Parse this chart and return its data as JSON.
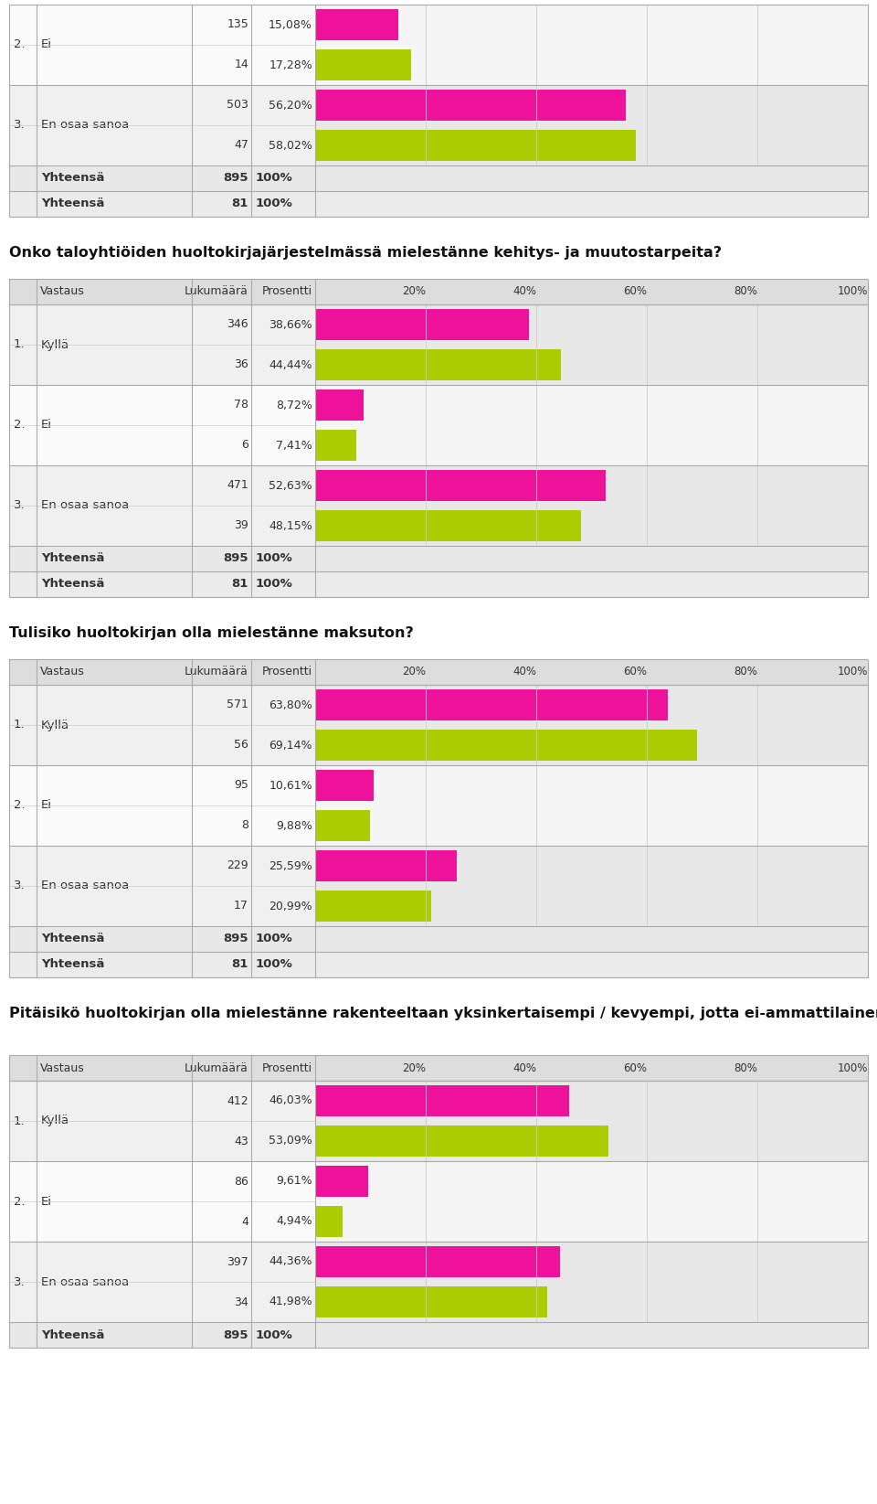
{
  "sections": [
    {
      "title": "Onko taloyhtiöiden huoltokirjajärjestelmässä mielestänne kehitys- ja muutostarpeita?",
      "title_lines": 1,
      "rows": [
        {
          "num": "1.",
          "label": "Kyllä",
          "val1": 346,
          "pct1": "38,66%",
          "pct1f": 38.66,
          "val2": 36,
          "pct2": "44,44%",
          "pct2f": 44.44
        },
        {
          "num": "2.",
          "label": "Ei",
          "val1": 78,
          "pct1": "8,72%",
          "pct1f": 8.72,
          "val2": 6,
          "pct2": "7,41%",
          "pct2f": 7.41
        },
        {
          "num": "3.",
          "label": "En osaa sanoa",
          "val1": 471,
          "pct1": "52,63%",
          "pct1f": 52.63,
          "val2": 39,
          "pct2": "48,15%",
          "pct2f": 48.15
        }
      ],
      "yhteensa": [
        {
          "n": "895",
          "pct": "100%"
        },
        {
          "n": "81",
          "pct": "100%"
        }
      ]
    },
    {
      "title": "Tulisiko huoltokirjan olla mielestänne maksuton?",
      "title_lines": 1,
      "rows": [
        {
          "num": "1.",
          "label": "Kyllä",
          "val1": 571,
          "pct1": "63,80%",
          "pct1f": 63.8,
          "val2": 56,
          "pct2": "69,14%",
          "pct2f": 69.14
        },
        {
          "num": "2.",
          "label": "Ei",
          "val1": 95,
          "pct1": "10,61%",
          "pct1f": 10.61,
          "val2": 8,
          "pct2": "9,88%",
          "pct2f": 9.88
        },
        {
          "num": "3.",
          "label": "En osaa sanoa",
          "val1": 229,
          "pct1": "25,59%",
          "pct1f": 25.59,
          "val2": 17,
          "pct2": "20,99%",
          "pct2f": 20.99
        }
      ],
      "yhteensa": [
        {
          "n": "895",
          "pct": "100%"
        },
        {
          "n": "81",
          "pct": "100%"
        }
      ]
    },
    {
      "title": "Pitäisikö huoltokirjan olla mielestänne rakenteeltaan yksinkertaisempi / kevyempi, jotta ei-ammattilainenkin pystyisi hyödyntämään sitä?",
      "title_lines": 2,
      "rows": [
        {
          "num": "1.",
          "label": "Kyllä",
          "val1": 412,
          "pct1": "46,03%",
          "pct1f": 46.03,
          "val2": 43,
          "pct2": "53,09%",
          "pct2f": 53.09
        },
        {
          "num": "2.",
          "label": "Ei",
          "val1": 86,
          "pct1": "9,61%",
          "pct1f": 9.61,
          "val2": 4,
          "pct2": "4,94%",
          "pct2f": 4.94
        },
        {
          "num": "3.",
          "label": "En osaa sanoa",
          "val1": 397,
          "pct1": "44,36%",
          "pct1f": 44.36,
          "val2": 34,
          "pct2": "41,98%",
          "pct2f": 41.98
        }
      ],
      "yhteensa": [
        {
          "n": "895",
          "pct": "100%"
        }
      ]
    }
  ],
  "top_rows": [
    {
      "num": "2.",
      "label": "Ei",
      "val1": 135,
      "pct1": "15,08%",
      "pct1f": 15.08,
      "val2": 14,
      "pct2": "17,28%",
      "pct2f": 17.28
    },
    {
      "num": "3.",
      "label": "En osaa sanoa",
      "val1": 503,
      "pct1": "56,20%",
      "pct1f": 56.2,
      "val2": 47,
      "pct2": "58,02%",
      "pct2f": 58.02
    }
  ],
  "top_yhteensa": [
    {
      "n": "895",
      "pct": "100%"
    },
    {
      "n": "81",
      "pct": "100%"
    }
  ],
  "color_pink": "#EE1199",
  "color_green": "#AACC00",
  "color_header_bg": "#DDDDDD",
  "color_row_odd": "#F0F0F0",
  "color_row_even": "#FAFAFA",
  "color_bar_bg_odd": "#E8E8E8",
  "color_bar_bg_even": "#F5F5F5",
  "color_yhteensa_bg1": "#E8E8E8",
  "color_yhteensa_bg2": "#EBEBEB",
  "color_border": "#BBBBBB",
  "color_text": "#333333"
}
